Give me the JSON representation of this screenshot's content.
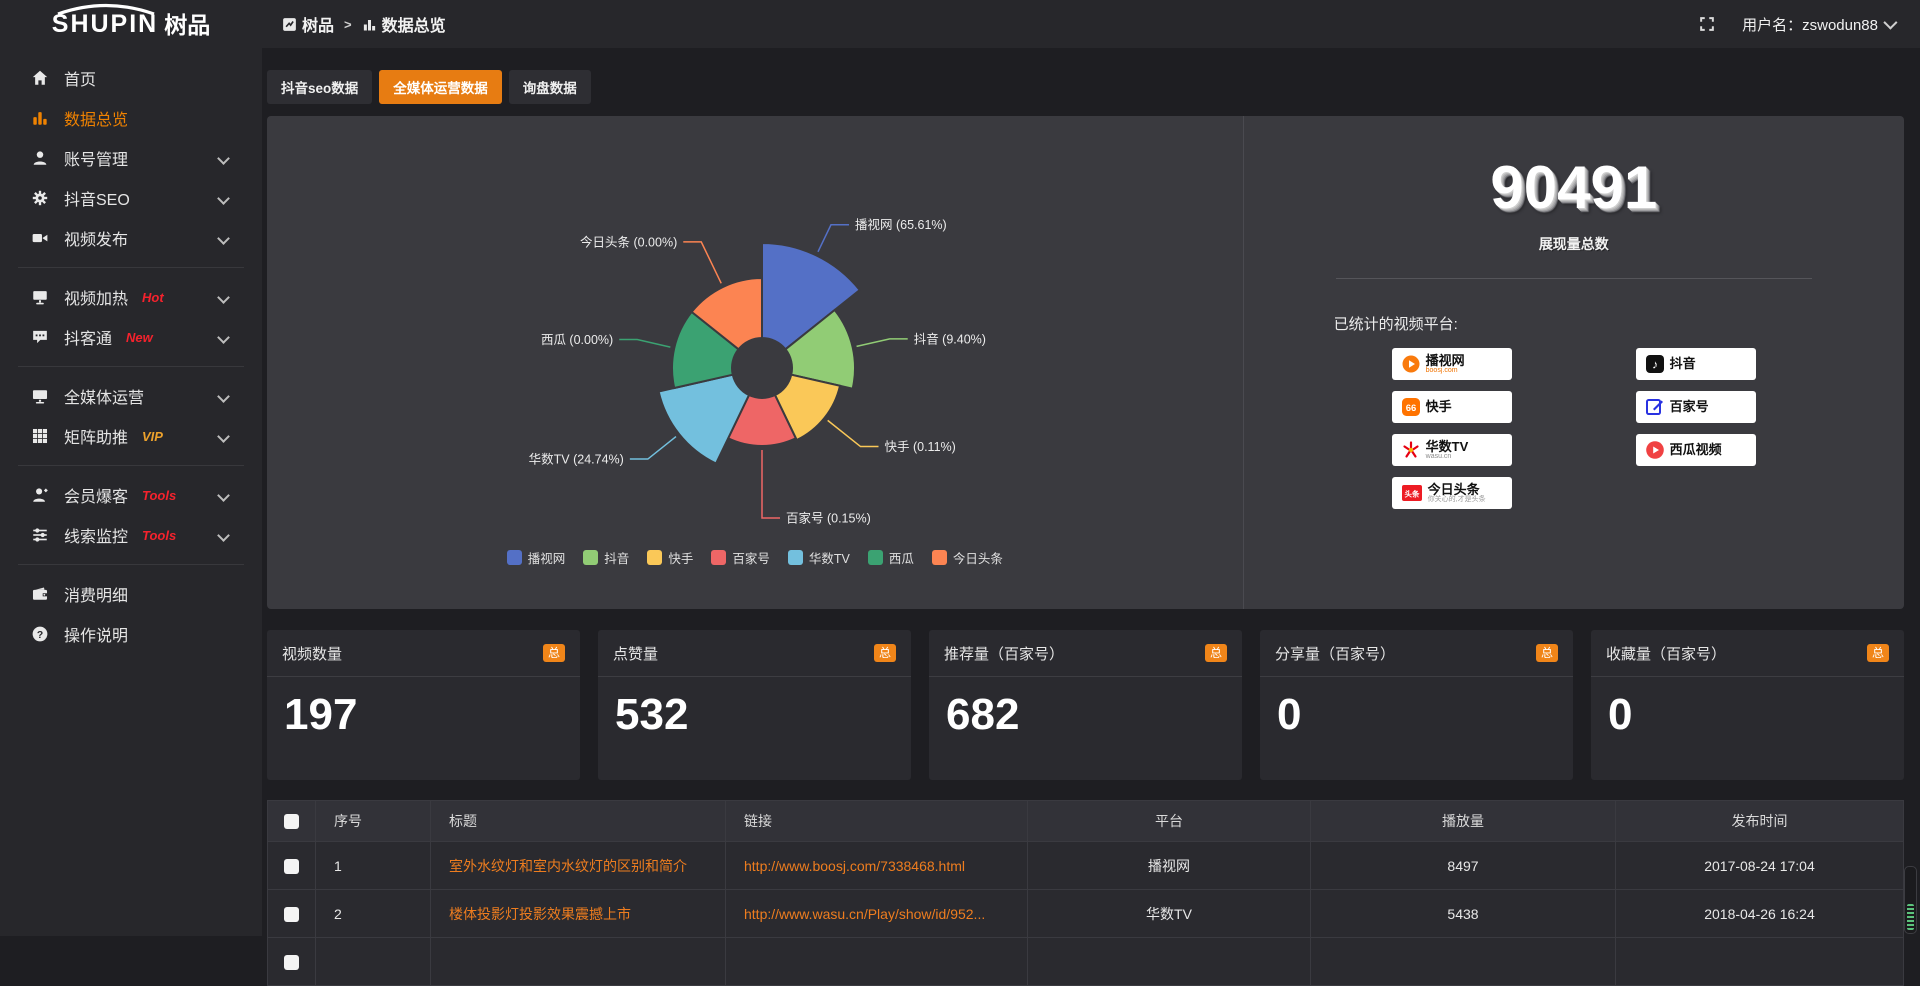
{
  "colors": {
    "page_bg": "#1e1e22",
    "bar_bg": "#27272b",
    "panel_bg": "#3a3a3f",
    "card_bg": "#2a2a2f",
    "accent_orange": "#e77c12",
    "badge_orange": "#f08519",
    "active_sidebar_text": "#ef8201",
    "hot_red": "#f5222d",
    "vip_gold": "#eda22c",
    "link_orange": "#ee7d1f"
  },
  "topbar": {
    "logo_main": "SHUPIN",
    "logo_cn": "树品",
    "breadcrumb_root": "树品",
    "breadcrumb_separator": ">",
    "breadcrumb_current": "数据总览",
    "username": "用户名：zswodun88"
  },
  "sidebar": {
    "items": [
      {
        "key": "home",
        "icon": "home",
        "label": "首页"
      },
      {
        "key": "data-overview",
        "icon": "chart",
        "label": "数据总览",
        "active": true
      },
      {
        "key": "account-manage",
        "icon": "user",
        "label": "账号管理",
        "chevron": true
      },
      {
        "key": "douyin-seo",
        "icon": "gear",
        "label": "抖音SEO",
        "chevron": true
      },
      {
        "key": "video-publish",
        "icon": "video",
        "label": "视频发布",
        "chevron": true,
        "divider_after": true
      },
      {
        "key": "video-heating",
        "icon": "heat",
        "label": "视频加热",
        "badge": "Hot",
        "badge_color": "#f5222d",
        "chevron": true
      },
      {
        "key": "douketong",
        "icon": "chat",
        "label": "抖客通",
        "badge": "New",
        "badge_color": "#f5222d",
        "chevron": true,
        "divider_after": true
      },
      {
        "key": "media-operation",
        "icon": "monitor",
        "label": "全媒体运营",
        "chevron": true
      },
      {
        "key": "matrix-boost",
        "icon": "grid",
        "label": "矩阵助推",
        "badge": "VIP",
        "badge_color": "#eda22c",
        "chevron": true,
        "divider_after": true
      },
      {
        "key": "member-burst",
        "icon": "member",
        "label": "会员爆客",
        "badge": "Tools",
        "badge_color": "#f5222d",
        "chevron": true
      },
      {
        "key": "clue-monitor",
        "icon": "sliders",
        "label": "线索监控",
        "badge": "Tools",
        "badge_color": "#f5222d",
        "chevron": true,
        "divider_after": true
      },
      {
        "key": "consume-detail",
        "icon": "wallet",
        "label": "消费明细"
      },
      {
        "key": "operation-guide",
        "icon": "help",
        "label": "操作说明"
      }
    ]
  },
  "tabs": [
    {
      "key": "douyin-seo-data",
      "label": "抖音seo数据"
    },
    {
      "key": "media-operation-data",
      "label": "全媒体运营数据",
      "active": true
    },
    {
      "key": "inquiry-data",
      "label": "询盘数据"
    }
  ],
  "chart_data": {
    "type": "pie",
    "subtype": "nightingale_rose",
    "legend_position": "bottom",
    "grid": false,
    "inner_radius": 30,
    "start_angle_deg": 0,
    "equal_angles": true,
    "items": [
      {
        "name": "播视网",
        "pct": "65.61",
        "color": "#5470c6",
        "r": 125,
        "leader": 30
      },
      {
        "name": "抖音",
        "pct": "9.40",
        "color": "#91cc75",
        "r": 93,
        "leader": 34
      },
      {
        "name": "快手",
        "pct": "0.11",
        "color": "#fac858",
        "r": 80,
        "leader": 42
      },
      {
        "name": "百家号",
        "pct": "0.15",
        "color": "#ee6666",
        "r": 78,
        "leader": 68
      },
      {
        "name": "华数TV",
        "pct": "24.74",
        "color": "#73c0de",
        "r": 106,
        "leader": 36
      },
      {
        "name": "西瓜",
        "pct": "0.00",
        "color": "#3ba272",
        "r": 90,
        "leader": 34
      },
      {
        "name": "今日头条",
        "pct": "0.00",
        "color": "#fc8452",
        "r": 90,
        "leader": 46
      }
    ]
  },
  "summary": {
    "total": "90491",
    "total_label": "展现量总数",
    "platforms_title": "已统计的视频平台:",
    "platforms": [
      {
        "key": "boosj",
        "name": "播视网",
        "sub": "boosj.com",
        "sub_color": "#f07300"
      },
      {
        "key": "kuaishou",
        "name": "快手",
        "sub": ""
      },
      {
        "key": "wasu",
        "name": "华数TV",
        "sub": "wasu.cn",
        "sub_color": "#8a8a8a"
      },
      {
        "key": "toutiao",
        "name": "今日头条",
        "sub": "你关心的,才是头条",
        "sub_color": "#9a9a9a"
      },
      {
        "key": "douyin",
        "name": "抖音",
        "sub": ""
      },
      {
        "key": "baijiahao",
        "name": "百家号",
        "sub": ""
      },
      {
        "key": "xigua",
        "name": "西瓜视频",
        "sub": ""
      }
    ]
  },
  "stat_cards": [
    {
      "title": "视频数量",
      "badge": "总",
      "value": "197"
    },
    {
      "title": "点赞量",
      "badge": "总",
      "value": "532"
    },
    {
      "title": "推荐量（百家号）",
      "badge": "总",
      "value": "682"
    },
    {
      "title": "分享量（百家号）",
      "badge": "总",
      "value": "0"
    },
    {
      "title": "收藏量（百家号）",
      "badge": "总",
      "value": "0"
    }
  ],
  "table": {
    "headers": [
      "序号",
      "标题",
      "链接",
      "平台",
      "播放量",
      "发布时间"
    ],
    "rows": [
      {
        "index": "1",
        "title": "室外水纹灯和室内水纹灯的区别和简介",
        "link": "http://www.boosj.com/7338468.html",
        "platform": "播视网",
        "views": "8497",
        "time": "2017-08-24 17:04"
      },
      {
        "index": "2",
        "title": "楼体投影灯投影效果震撼上市",
        "link": "http://www.wasu.cn/Play/show/id/952...",
        "platform": "华数TV",
        "views": "5438",
        "time": "2018-04-26 16:24"
      }
    ]
  }
}
